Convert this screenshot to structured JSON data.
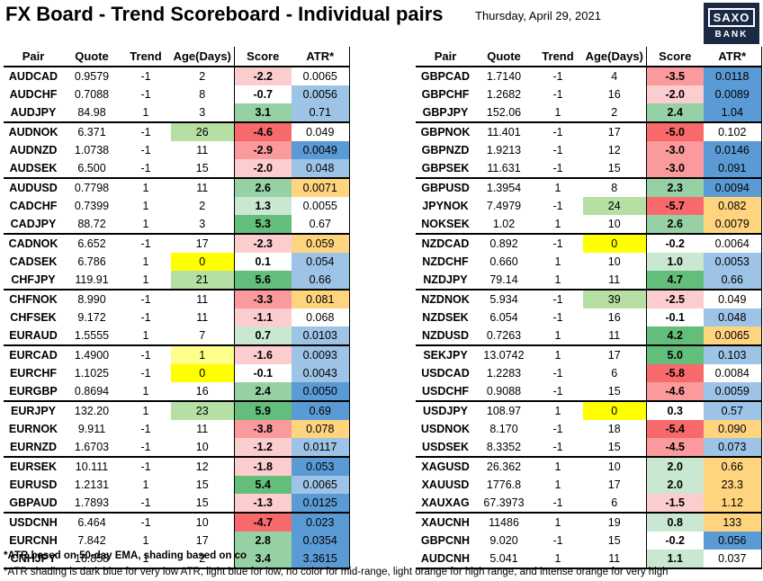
{
  "header": {
    "title": "FX Board - Trend Scoreboard - Individual pairs",
    "date": "Thursday, April 29, 2021",
    "logo_top": "SAXO",
    "logo_bottom": "BANK"
  },
  "columns": [
    "Pair",
    "Quote",
    "Trend",
    "Age(Days)",
    "Score",
    "ATR*"
  ],
  "colors": {
    "score_red_strong": "#f8696b",
    "score_red_mid": "#fa9a9c",
    "score_red_light": "#fccdce",
    "score_green_strong": "#63be7b",
    "score_green_mid": "#96d1a6",
    "score_green_light": "#c9e7d1",
    "age_green": "#d7eecd",
    "age_green_mid": "#b5dfa3",
    "age_yellow": "#ffff00",
    "age_yellow_light": "#ffff8c",
    "atr_dark_blue": "#5b9bd5",
    "atr_light_blue": "#9dc3e6",
    "atr_light_orange": "#ffd47f",
    "atr_orange": "#ffc266"
  },
  "left_rows": [
    {
      "pair": "AUDCAD",
      "quote": "0.9579",
      "trend": "-1",
      "age": "2",
      "score": "-2.2",
      "atr": "0.0065",
      "age_c": "",
      "score_c": "score_red_light",
      "atr_c": ""
    },
    {
      "pair": "AUDCHF",
      "quote": "0.7088",
      "trend": "-1",
      "age": "8",
      "score": "-0.7",
      "atr": "0.0056",
      "age_c": "",
      "score_c": "",
      "atr_c": "atr_light_blue"
    },
    {
      "pair": "AUDJPY",
      "quote": "84.98",
      "trend": "1",
      "age": "3",
      "score": "3.1",
      "atr": "0.71",
      "age_c": "",
      "score_c": "score_green_mid",
      "atr_c": "atr_light_blue",
      "end": true
    },
    {
      "pair": "AUDNOK",
      "quote": "6.371",
      "trend": "-1",
      "age": "26",
      "score": "-4.6",
      "atr": "0.049",
      "age_c": "age_green_mid",
      "score_c": "score_red_strong",
      "atr_c": ""
    },
    {
      "pair": "AUDNZD",
      "quote": "1.0738",
      "trend": "-1",
      "age": "11",
      "score": "-2.9",
      "atr": "0.0049",
      "age_c": "",
      "score_c": "score_red_mid",
      "atr_c": "atr_dark_blue"
    },
    {
      "pair": "AUDSEK",
      "quote": "6.500",
      "trend": "-1",
      "age": "15",
      "score": "-2.0",
      "atr": "0.048",
      "age_c": "",
      "score_c": "score_red_light",
      "atr_c": "atr_light_blue",
      "end": true
    },
    {
      "pair": "AUDUSD",
      "quote": "0.7798",
      "trend": "1",
      "age": "11",
      "score": "2.6",
      "atr": "0.0071",
      "age_c": "",
      "score_c": "score_green_mid",
      "atr_c": "atr_light_orange"
    },
    {
      "pair": "CADCHF",
      "quote": "0.7399",
      "trend": "1",
      "age": "2",
      "score": "1.3",
      "atr": "0.0055",
      "age_c": "",
      "score_c": "score_green_light",
      "atr_c": ""
    },
    {
      "pair": "CADJPY",
      "quote": "88.72",
      "trend": "1",
      "age": "3",
      "score": "5.3",
      "atr": "0.67",
      "age_c": "",
      "score_c": "score_green_strong",
      "atr_c": "",
      "end": true
    },
    {
      "pair": "CADNOK",
      "quote": "6.652",
      "trend": "-1",
      "age": "17",
      "score": "-2.3",
      "atr": "0.059",
      "age_c": "",
      "score_c": "score_red_light",
      "atr_c": "atr_light_orange"
    },
    {
      "pair": "CADSEK",
      "quote": "6.786",
      "trend": "1",
      "age": "0",
      "score": "0.1",
      "atr": "0.054",
      "age_c": "age_yellow",
      "score_c": "",
      "atr_c": "atr_light_blue"
    },
    {
      "pair": "CHFJPY",
      "quote": "119.91",
      "trend": "1",
      "age": "21",
      "score": "5.6",
      "atr": "0.66",
      "age_c": "age_green_mid",
      "score_c": "score_green_strong",
      "atr_c": "atr_light_blue",
      "end": true
    },
    {
      "pair": "CHFNOK",
      "quote": "8.990",
      "trend": "-1",
      "age": "11",
      "score": "-3.3",
      "atr": "0.081",
      "age_c": "",
      "score_c": "score_red_mid",
      "atr_c": "atr_light_orange"
    },
    {
      "pair": "CHFSEK",
      "quote": "9.172",
      "trend": "-1",
      "age": "11",
      "score": "-1.1",
      "atr": "0.068",
      "age_c": "",
      "score_c": "score_red_light",
      "atr_c": ""
    },
    {
      "pair": "EURAUD",
      "quote": "1.5555",
      "trend": "1",
      "age": "7",
      "score": "0.7",
      "atr": "0.0103",
      "age_c": "",
      "score_c": "score_green_light",
      "atr_c": "atr_light_blue",
      "end": true
    },
    {
      "pair": "EURCAD",
      "quote": "1.4900",
      "trend": "-1",
      "age": "1",
      "score": "-1.6",
      "atr": "0.0093",
      "age_c": "age_yellow_light",
      "score_c": "score_red_light",
      "atr_c": "atr_light_blue"
    },
    {
      "pair": "EURCHF",
      "quote": "1.1025",
      "trend": "-1",
      "age": "0",
      "score": "-0.1",
      "atr": "0.0043",
      "age_c": "age_yellow",
      "score_c": "",
      "atr_c": "atr_light_blue"
    },
    {
      "pair": "EURGBP",
      "quote": "0.8694",
      "trend": "1",
      "age": "16",
      "score": "2.4",
      "atr": "0.0050",
      "age_c": "",
      "score_c": "score_green_mid",
      "atr_c": "atr_dark_blue",
      "end": true
    },
    {
      "pair": "EURJPY",
      "quote": "132.20",
      "trend": "1",
      "age": "23",
      "score": "5.9",
      "atr": "0.69",
      "age_c": "age_green_mid",
      "score_c": "score_green_strong",
      "atr_c": "atr_dark_blue"
    },
    {
      "pair": "EURNOK",
      "quote": "9.911",
      "trend": "-1",
      "age": "11",
      "score": "-3.8",
      "atr": "0.078",
      "age_c": "",
      "score_c": "score_red_mid",
      "atr_c": "atr_light_orange"
    },
    {
      "pair": "EURNZD",
      "quote": "1.6703",
      "trend": "-1",
      "age": "10",
      "score": "-1.2",
      "atr": "0.0117",
      "age_c": "",
      "score_c": "score_red_light",
      "atr_c": "atr_light_blue",
      "end": true
    },
    {
      "pair": "EURSEK",
      "quote": "10.111",
      "trend": "-1",
      "age": "12",
      "score": "-1.8",
      "atr": "0.053",
      "age_c": "",
      "score_c": "score_red_light",
      "atr_c": "atr_dark_blue"
    },
    {
      "pair": "EURUSD",
      "quote": "1.2131",
      "trend": "1",
      "age": "15",
      "score": "5.4",
      "atr": "0.0065",
      "age_c": "",
      "score_c": "score_green_strong",
      "atr_c": "atr_light_blue"
    },
    {
      "pair": "GBPAUD",
      "quote": "1.7893",
      "trend": "-1",
      "age": "15",
      "score": "-1.3",
      "atr": "0.0125",
      "age_c": "",
      "score_c": "score_red_light",
      "atr_c": "atr_dark_blue",
      "end": true
    },
    {
      "pair": "USDCNH",
      "quote": "6.464",
      "trend": "-1",
      "age": "10",
      "score": "-4.7",
      "atr": "0.023",
      "age_c": "",
      "score_c": "score_red_strong",
      "atr_c": "atr_dark_blue"
    },
    {
      "pair": "EURCNH",
      "quote": "7.842",
      "trend": "1",
      "age": "17",
      "score": "2.8",
      "atr": "0.0354",
      "age_c": "",
      "score_c": "score_green_mid",
      "atr_c": "atr_dark_blue"
    },
    {
      "pair": "CNHJPY",
      "quote": "16.858",
      "trend": "1",
      "age": "2",
      "score": "3.4",
      "atr": "3.3615",
      "age_c": "",
      "score_c": "score_green_mid",
      "atr_c": "atr_dark_blue",
      "end": true
    }
  ],
  "right_rows": [
    {
      "pair": "GBPCAD",
      "quote": "1.7140",
      "trend": "-1",
      "age": "4",
      "score": "-3.5",
      "atr": "0.0118",
      "age_c": "",
      "score_c": "score_red_mid",
      "atr_c": "atr_dark_blue"
    },
    {
      "pair": "GBPCHF",
      "quote": "1.2682",
      "trend": "-1",
      "age": "16",
      "score": "-2.0",
      "atr": "0.0089",
      "age_c": "",
      "score_c": "score_red_light",
      "atr_c": "atr_dark_blue"
    },
    {
      "pair": "GBPJPY",
      "quote": "152.06",
      "trend": "1",
      "age": "2",
      "score": "2.4",
      "atr": "1.04",
      "age_c": "",
      "score_c": "score_green_mid",
      "atr_c": "atr_dark_blue",
      "end": true
    },
    {
      "pair": "GBPNOK",
      "quote": "11.401",
      "trend": "-1",
      "age": "17",
      "score": "-5.0",
      "atr": "0.102",
      "age_c": "",
      "score_c": "score_red_strong",
      "atr_c": ""
    },
    {
      "pair": "GBPNZD",
      "quote": "1.9213",
      "trend": "-1",
      "age": "12",
      "score": "-3.0",
      "atr": "0.0146",
      "age_c": "",
      "score_c": "score_red_mid",
      "atr_c": "atr_dark_blue"
    },
    {
      "pair": "GBPSEK",
      "quote": "11.631",
      "trend": "-1",
      "age": "15",
      "score": "-3.0",
      "atr": "0.091",
      "age_c": "",
      "score_c": "score_red_mid",
      "atr_c": "atr_dark_blue",
      "end": true
    },
    {
      "pair": "GBPUSD",
      "quote": "1.3954",
      "trend": "1",
      "age": "8",
      "score": "2.3",
      "atr": "0.0094",
      "age_c": "",
      "score_c": "score_green_mid",
      "atr_c": "atr_dark_blue"
    },
    {
      "pair": "JPYNOK",
      "quote": "7.4979",
      "trend": "-1",
      "age": "24",
      "score": "-5.7",
      "atr": "0.082",
      "age_c": "age_green_mid",
      "score_c": "score_red_strong",
      "atr_c": "atr_light_orange"
    },
    {
      "pair": "NOKSEK",
      "quote": "1.02",
      "trend": "1",
      "age": "10",
      "score": "2.6",
      "atr": "0.0079",
      "age_c": "",
      "score_c": "score_green_mid",
      "atr_c": "atr_light_orange",
      "end": true
    },
    {
      "pair": "NZDCAD",
      "quote": "0.892",
      "trend": "-1",
      "age": "0",
      "score": "-0.2",
      "atr": "0.0064",
      "age_c": "age_yellow",
      "score_c": "",
      "atr_c": ""
    },
    {
      "pair": "NZDCHF",
      "quote": "0.660",
      "trend": "1",
      "age": "10",
      "score": "1.0",
      "atr": "0.0053",
      "age_c": "",
      "score_c": "score_green_light",
      "atr_c": "atr_light_blue"
    },
    {
      "pair": "NZDJPY",
      "quote": "79.14",
      "trend": "1",
      "age": "11",
      "score": "4.7",
      "atr": "0.66",
      "age_c": "",
      "score_c": "score_green_strong",
      "atr_c": "atr_light_blue",
      "end": true
    },
    {
      "pair": "NZDNOK",
      "quote": "5.934",
      "trend": "-1",
      "age": "39",
      "score": "-2.5",
      "atr": "0.049",
      "age_c": "age_green_mid",
      "score_c": "score_red_light",
      "atr_c": ""
    },
    {
      "pair": "NZDSEK",
      "quote": "6.054",
      "trend": "-1",
      "age": "16",
      "score": "-0.1",
      "atr": "0.048",
      "age_c": "",
      "score_c": "",
      "atr_c": "atr_light_blue"
    },
    {
      "pair": "NZDUSD",
      "quote": "0.7263",
      "trend": "1",
      "age": "11",
      "score": "4.2",
      "atr": "0.0065",
      "age_c": "",
      "score_c": "score_green_strong",
      "atr_c": "atr_light_orange",
      "end": true
    },
    {
      "pair": "SEKJPY",
      "quote": "13.0742",
      "trend": "1",
      "age": "17",
      "score": "5.0",
      "atr": "0.103",
      "age_c": "",
      "score_c": "score_green_strong",
      "atr_c": "atr_light_blue"
    },
    {
      "pair": "USDCAD",
      "quote": "1.2283",
      "trend": "-1",
      "age": "6",
      "score": "-5.8",
      "atr": "0.0084",
      "age_c": "",
      "score_c": "score_red_strong",
      "atr_c": ""
    },
    {
      "pair": "USDCHF",
      "quote": "0.9088",
      "trend": "-1",
      "age": "15",
      "score": "-4.6",
      "atr": "0.0059",
      "age_c": "",
      "score_c": "score_red_mid",
      "atr_c": "atr_light_blue",
      "end": true
    },
    {
      "pair": "USDJPY",
      "quote": "108.97",
      "trend": "1",
      "age": "0",
      "score": "0.3",
      "atr": "0.57",
      "age_c": "age_yellow",
      "score_c": "",
      "atr_c": "atr_light_blue"
    },
    {
      "pair": "USDNOK",
      "quote": "8.170",
      "trend": "-1",
      "age": "18",
      "score": "-5.4",
      "atr": "0.090",
      "age_c": "",
      "score_c": "score_red_strong",
      "atr_c": "atr_light_orange"
    },
    {
      "pair": "USDSEK",
      "quote": "8.3352",
      "trend": "-1",
      "age": "15",
      "score": "-4.5",
      "atr": "0.073",
      "age_c": "",
      "score_c": "score_red_mid",
      "atr_c": "atr_light_blue",
      "end": true
    },
    {
      "pair": "XAGUSD",
      "quote": "26.362",
      "trend": "1",
      "age": "10",
      "score": "2.0",
      "atr": "0.66",
      "age_c": "",
      "score_c": "score_green_light",
      "atr_c": "atr_light_orange"
    },
    {
      "pair": "XAUUSD",
      "quote": "1776.8",
      "trend": "1",
      "age": "17",
      "score": "2.0",
      "atr": "23.3",
      "age_c": "",
      "score_c": "score_green_light",
      "atr_c": "atr_light_orange"
    },
    {
      "pair": "XAUXAG",
      "quote": "67.3973",
      "trend": "-1",
      "age": "6",
      "score": "-1.5",
      "atr": "1.12",
      "age_c": "",
      "score_c": "score_red_light",
      "atr_c": "atr_light_orange",
      "end": true
    },
    {
      "pair": "XAUCNH",
      "quote": "11486",
      "trend": "1",
      "age": "19",
      "score": "0.8",
      "atr": "133",
      "age_c": "",
      "score_c": "score_green_light",
      "atr_c": "atr_light_orange"
    },
    {
      "pair": "GBPCNH",
      "quote": "9.020",
      "trend": "-1",
      "age": "15",
      "score": "-0.2",
      "atr": "0.056",
      "age_c": "",
      "score_c": "",
      "atr_c": "atr_dark_blue"
    },
    {
      "pair": "AUDCNH",
      "quote": "5.041",
      "trend": "1",
      "age": "11",
      "score": "1.1",
      "atr": "0.037",
      "age_c": "",
      "score_c": "score_green_light",
      "atr_c": "",
      "end": true
    }
  ],
  "notes": {
    "note1": "*ATR based on 50-day EMA, shading based on co",
    "note2": "*ATR shading is dark blue for very low ATR, light blue for low, no color for mid-range, light orange for high range, and intense orange for very high"
  }
}
